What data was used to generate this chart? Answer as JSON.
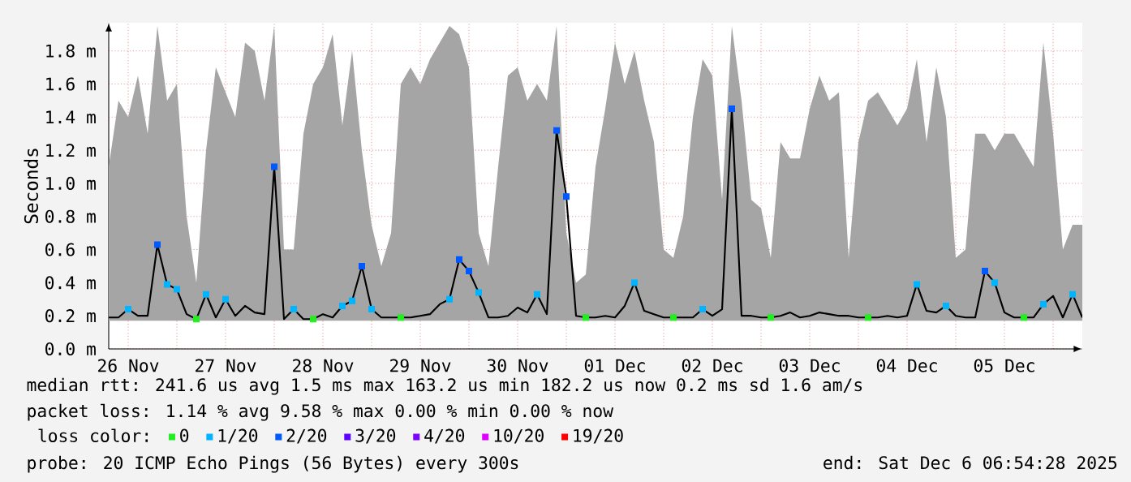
{
  "chart_data": {
    "type": "line",
    "ylabel": "Seconds",
    "xlim": [
      "2025-11-26T07:12",
      "2025-12-06T07:12"
    ],
    "ylim": [
      0,
      1.97
    ],
    "xticks": [
      {
        "value": "2025-11-26T12:00",
        "label": "26 Nov"
      },
      {
        "value": "2025-11-27",
        "label": null
      },
      {
        "value": "2025-11-27T12:00",
        "label": "27 Nov"
      },
      {
        "value": "2025-11-28",
        "label": null
      },
      {
        "value": "2025-11-28T12:00",
        "label": "28 Nov"
      },
      {
        "value": "2025-11-29",
        "label": null
      },
      {
        "value": "2025-11-29T12:00",
        "label": "29 Nov"
      },
      {
        "value": "2025-11-30",
        "label": null
      },
      {
        "value": "2025-11-30T12:00",
        "label": "30 Nov"
      },
      {
        "value": "2025-12-01",
        "label": null
      },
      {
        "value": "2025-12-01T12:00",
        "label": "01 Dec"
      },
      {
        "value": "2025-12-02",
        "label": null
      },
      {
        "value": "2025-12-02T12:00",
        "label": "02 Dec"
      },
      {
        "value": "2025-12-03",
        "label": null
      },
      {
        "value": "2025-12-03T12:00",
        "label": "03 Dec"
      },
      {
        "value": "2025-12-04",
        "label": null
      },
      {
        "value": "2025-12-04T12:00",
        "label": "04 Dec"
      },
      {
        "value": "2025-12-05",
        "label": null
      },
      {
        "value": "2025-12-05T12:00",
        "label": "05 Dec"
      },
      {
        "value": "2025-12-06",
        "label": null
      }
    ],
    "yticks": [
      {
        "value": 0,
        "label": "0.0 m"
      },
      {
        "value": 0.2,
        "label": "0.2 m"
      },
      {
        "value": 0.4,
        "label": "0.4 m"
      },
      {
        "value": 0.6,
        "label": "0.6 m"
      },
      {
        "value": 0.8,
        "label": "0.8 m"
      },
      {
        "value": 1.0,
        "label": "1.0 m"
      },
      {
        "value": 1.2,
        "label": "1.2 m"
      },
      {
        "value": 1.4,
        "label": "1.4 m"
      },
      {
        "value": 1.6,
        "label": "1.6 m"
      },
      {
        "value": 1.8,
        "label": "1.8 m"
      }
    ],
    "grid": true,
    "legend": "bottom",
    "legend_title": "loss color:",
    "annotations": [
      "median rtt: 241.6 us avg 1.5 ms max 163.2 us min 182.2 us now 0.2 ms sd 1.6 am/s",
      "packet loss: 1.14 % avg 9.58 % max 0.00 % min 0.00 % now",
      "probe: 20 ICMP Echo Pings (56 Bytes) every 300s",
      "end: Sat Dec 6 06:54:28 2025"
    ],
    "series": [
      {
        "color": "#000000",
        "marker": "none",
        "line_style": "solid",
        "x": [
          "2025-11-26T07:12",
          "2025-11-26T09:36",
          "2025-11-26T12:00",
          "2025-11-26T14:24",
          "2025-11-26T16:48",
          "2025-11-26T19:12",
          "2025-11-26T21:36",
          "2025-11-27T00:00",
          "2025-11-27T02:24",
          "2025-11-27T04:48",
          "2025-11-27T07:12",
          "2025-11-27T09:36",
          "2025-11-27T12:00",
          "2025-11-27T14:24",
          "2025-11-27T16:48",
          "2025-11-27T19:12",
          "2025-11-27T21:36",
          "2025-11-28T00:00",
          "2025-11-28T02:24",
          "2025-11-28T04:48",
          "2025-11-28T07:12",
          "2025-11-28T09:36",
          "2025-11-28T12:00",
          "2025-11-28T14:24",
          "2025-11-28T16:48",
          "2025-11-28T19:12",
          "2025-11-28T21:36",
          "2025-11-29T00:00",
          "2025-11-29T02:24",
          "2025-11-29T04:48",
          "2025-11-29T07:12",
          "2025-11-29T09:36",
          "2025-11-29T12:00",
          "2025-11-29T14:24",
          "2025-11-29T16:48",
          "2025-11-29T19:12",
          "2025-11-29T21:36",
          "2025-11-30T00:00",
          "2025-11-30T02:24",
          "2025-11-30T04:48",
          "2025-11-30T07:12",
          "2025-11-30T09:36",
          "2025-11-30T12:00",
          "2025-11-30T14:24",
          "2025-11-30T16:48",
          "2025-11-30T19:12",
          "2025-11-30T21:36",
          "2025-12-01T00:00",
          "2025-12-01T02:24",
          "2025-12-01T04:48",
          "2025-12-01T07:12",
          "2025-12-01T09:36",
          "2025-12-01T12:00",
          "2025-12-01T14:24",
          "2025-12-01T16:48",
          "2025-12-01T19:12",
          "2025-12-01T21:36",
          "2025-12-02T00:00",
          "2025-12-02T02:24",
          "2025-12-02T04:48",
          "2025-12-02T07:12",
          "2025-12-02T09:36",
          "2025-12-02T12:00",
          "2025-12-02T14:24",
          "2025-12-02T16:48",
          "2025-12-02T19:12",
          "2025-12-02T21:36",
          "2025-12-03T00:00",
          "2025-12-03T02:24",
          "2025-12-03T04:48",
          "2025-12-03T07:12",
          "2025-12-03T09:36",
          "2025-12-03T12:00",
          "2025-12-03T14:24",
          "2025-12-03T16:48",
          "2025-12-03T19:12",
          "2025-12-03T21:36",
          "2025-12-04T00:00",
          "2025-12-04T02:24",
          "2025-12-04T04:48",
          "2025-12-04T07:12",
          "2025-12-04T09:36",
          "2025-12-04T12:00",
          "2025-12-04T14:24",
          "2025-12-04T16:48",
          "2025-12-04T19:12",
          "2025-12-04T21:36",
          "2025-12-05T00:00",
          "2025-12-05T02:24",
          "2025-12-05T04:48",
          "2025-12-05T07:12",
          "2025-12-05T09:36",
          "2025-12-05T12:00",
          "2025-12-05T14:24",
          "2025-12-05T16:48",
          "2025-12-05T19:12",
          "2025-12-05T21:36",
          "2025-12-06T00:00",
          "2025-12-06T02:24",
          "2025-12-06T04:48",
          "2025-12-06T07:12"
        ],
        "values": [
          0.19,
          0.19,
          0.24,
          0.2,
          0.2,
          0.63,
          0.39,
          0.36,
          0.21,
          0.18,
          0.33,
          0.19,
          0.3,
          0.2,
          0.26,
          0.22,
          0.21,
          1.1,
          0.18,
          0.24,
          0.18,
          0.18,
          0.21,
          0.19,
          0.26,
          0.29,
          0.5,
          0.24,
          0.19,
          0.19,
          0.19,
          0.19,
          0.2,
          0.21,
          0.27,
          0.3,
          0.54,
          0.47,
          0.34,
          0.19,
          0.19,
          0.2,
          0.25,
          0.22,
          0.33,
          0.21,
          1.32,
          0.92,
          0.2,
          0.19,
          0.19,
          0.2,
          0.19,
          0.26,
          0.4,
          0.23,
          0.21,
          0.19,
          0.19,
          0.19,
          0.19,
          0.24,
          0.2,
          0.24,
          1.45,
          0.2,
          0.2,
          0.19,
          0.19,
          0.2,
          0.22,
          0.19,
          0.2,
          0.22,
          0.21,
          0.2,
          0.2,
          0.19,
          0.19,
          0.19,
          0.2,
          0.19,
          0.2,
          0.39,
          0.23,
          0.22,
          0.26,
          0.2,
          0.19,
          0.19,
          0.47,
          0.4,
          0.22,
          0.19,
          0.19,
          0.19,
          0.27,
          0.32,
          0.19,
          0.33,
          0.19
        ],
        "lower": [
          0.17,
          0.17,
          0.17,
          0.17,
          0.17,
          0.17,
          0.17,
          0.17,
          0.17,
          0.17,
          0.17,
          0.17,
          0.17,
          0.17,
          0.17,
          0.17,
          0.17,
          0.17,
          0.17,
          0.17,
          0.17,
          0.17,
          0.17,
          0.17,
          0.17,
          0.17,
          0.17,
          0.17,
          0.17,
          0.17,
          0.17,
          0.17,
          0.17,
          0.17,
          0.17,
          0.17,
          0.17,
          0.17,
          0.17,
          0.17,
          0.17,
          0.17,
          0.17,
          0.17,
          0.17,
          0.17,
          0.17,
          0.17,
          0.17,
          0.17,
          0.17,
          0.17,
          0.17,
          0.17,
          0.17,
          0.17,
          0.17,
          0.17,
          0.17,
          0.17,
          0.17,
          0.17,
          0.17,
          0.17,
          0.17,
          0.17,
          0.17,
          0.17,
          0.17,
          0.17,
          0.17,
          0.17,
          0.17,
          0.17,
          0.17,
          0.17,
          0.17,
          0.17,
          0.17,
          0.17,
          0.17,
          0.17,
          0.17,
          0.17,
          0.17,
          0.17,
          0.17,
          0.17,
          0.17,
          0.17,
          0.17,
          0.17,
          0.17,
          0.17,
          0.17,
          0.17,
          0.17,
          0.17,
          0.17,
          0.17,
          0.17
        ],
        "upper": [
          1.1,
          1.5,
          1.4,
          1.65,
          1.3,
          1.95,
          1.5,
          1.6,
          0.8,
          0.4,
          1.2,
          1.7,
          1.55,
          1.4,
          1.85,
          1.8,
          1.5,
          1.95,
          0.6,
          0.6,
          1.3,
          1.6,
          1.7,
          1.9,
          1.35,
          1.8,
          1.2,
          0.75,
          0.5,
          0.7,
          1.6,
          1.7,
          1.6,
          1.75,
          1.85,
          1.95,
          1.9,
          1.7,
          0.7,
          0.5,
          1.1,
          1.65,
          1.7,
          1.5,
          1.6,
          1.5,
          1.95,
          0.7,
          0.4,
          0.45,
          1.1,
          1.45,
          1.85,
          1.6,
          1.8,
          1.5,
          1.25,
          0.6,
          0.55,
          0.8,
          1.4,
          1.75,
          1.65,
          0.9,
          1.95,
          1.5,
          0.9,
          0.85,
          0.55,
          1.25,
          1.15,
          1.15,
          1.45,
          1.65,
          1.5,
          1.55,
          0.55,
          1.25,
          1.5,
          1.55,
          1.45,
          1.35,
          1.45,
          1.75,
          1.25,
          1.7,
          1.4,
          0.55,
          0.6,
          1.3,
          1.3,
          1.2,
          1.3,
          1.3,
          1.2,
          1.1,
          1.85,
          1.3,
          0.6,
          0.75,
          0.75
        ]
      },
      {
        "type": "scatter",
        "name": "0",
        "color": "#22ee22",
        "marker": "square",
        "x": [
          "2025-11-27T04:48",
          "2025-11-28T09:36",
          "2025-11-29T07:12",
          "2025-12-01T04:48",
          "2025-12-02T02:24",
          "2025-12-03T02:24",
          "2025-12-04T02:24",
          "2025-12-05T16:48"
        ],
        "values": [
          0.18,
          0.18,
          0.19,
          0.19,
          0.19,
          0.19,
          0.19,
          0.19
        ]
      },
      {
        "type": "scatter",
        "name": "1/20",
        "color": "#00b4ff",
        "marker": "square",
        "x": [
          "2025-11-26T12:00",
          "2025-11-26T21:36",
          "2025-11-27T00:00",
          "2025-11-27T07:12",
          "2025-11-27T12:00",
          "2025-11-28T04:48",
          "2025-11-28T16:48",
          "2025-11-28T19:12",
          "2025-11-29T00:00",
          "2025-11-29T19:12",
          "2025-11-30T02:24",
          "2025-11-30T16:48",
          "2025-12-01T16:48",
          "2025-12-02T09:36",
          "2025-12-04T14:24",
          "2025-12-04T21:36",
          "2025-12-05T09:36",
          "2025-12-05T21:36",
          "2025-12-06T04:48"
        ],
        "values": [
          0.24,
          0.39,
          0.36,
          0.33,
          0.3,
          0.24,
          0.26,
          0.29,
          0.24,
          0.3,
          0.34,
          0.33,
          0.4,
          0.24,
          0.39,
          0.26,
          0.4,
          0.27,
          0.33
        ]
      },
      {
        "type": "scatter",
        "name": "2/20",
        "color": "#0059ff",
        "marker": "square",
        "x": [
          "2025-11-26T19:12",
          "2025-11-28T00:00",
          "2025-11-28T21:36",
          "2025-11-29T21:36",
          "2025-11-30T00:00",
          "2025-11-30T21:36",
          "2025-12-01T00:00",
          "2025-12-02T16:48",
          "2025-12-05T07:12"
        ],
        "values": [
          0.63,
          1.1,
          0.5,
          0.54,
          0.47,
          1.32,
          0.92,
          1.45,
          0.47
        ]
      },
      {
        "type": "scatter",
        "name": "3/20",
        "color": "#5e00ff",
        "marker": "square"
      },
      {
        "type": "scatter",
        "name": "4/20",
        "color": "#7e00ff",
        "marker": "square"
      },
      {
        "type": "scatter",
        "name": "10/20",
        "color": "#dd00ff",
        "marker": "square"
      },
      {
        "type": "scatter",
        "name": "19/20",
        "color": "#ff0000",
        "marker": "square"
      }
    ]
  }
}
